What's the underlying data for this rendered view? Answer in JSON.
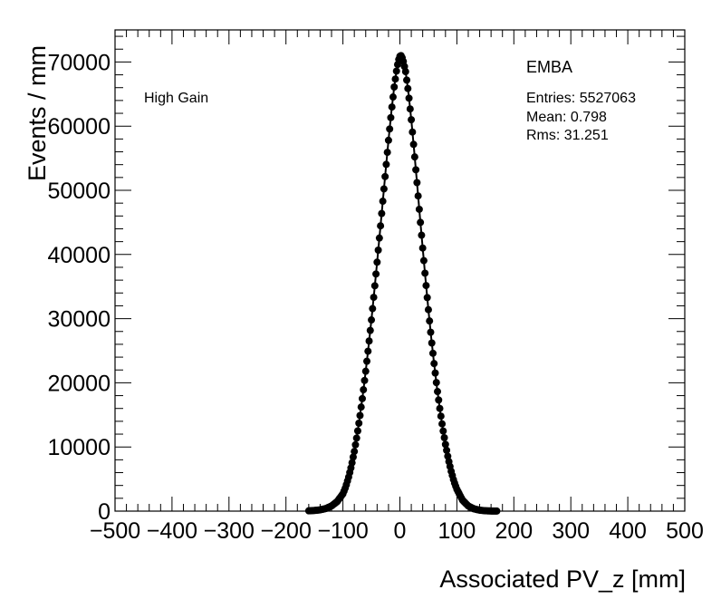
{
  "chart_data": {
    "type": "scatter",
    "title": "",
    "xlabel": "Associated PV_z [mm]",
    "ylabel": "Events / mm",
    "xlim": [
      -500,
      500
    ],
    "ylim": [
      0,
      75000
    ],
    "x_ticks": [
      "−500",
      "−400",
      "−300",
      "−200",
      "−100",
      "0",
      "100",
      "200",
      "300",
      "400",
      "500"
    ],
    "y_ticks": [
      "0",
      "10000",
      "20000",
      "30000",
      "40000",
      "50000",
      "60000",
      "70000"
    ],
    "annotation": "High Gain",
    "stats_box": {
      "title": "EMBA",
      "entries": "Entries: 5527063",
      "mean": "Mean: 0.798",
      "rms": "Rms: 31.251"
    },
    "series": [
      {
        "marker": "filled-circle",
        "color": "#000000",
        "x": [
          -160,
          -150,
          -140,
          -130,
          -120,
          -110,
          -100,
          -95,
          -90,
          -85,
          -80,
          -75,
          -70,
          -65,
          -60,
          -55,
          -50,
          -45,
          -40,
          -35,
          -30,
          -25,
          -20,
          -15,
          -10,
          -5,
          -2,
          0,
          2,
          5,
          10,
          15,
          20,
          25,
          30,
          35,
          40,
          45,
          50,
          55,
          60,
          65,
          70,
          75,
          80,
          85,
          90,
          95,
          100,
          110,
          120,
          130,
          140,
          150,
          160,
          170
        ],
        "y": [
          50,
          100,
          200,
          400,
          800,
          1500,
          2700,
          3800,
          5300,
          7100,
          9300,
          11900,
          14900,
          18200,
          21800,
          25700,
          29800,
          34200,
          38800,
          43500,
          48300,
          53100,
          57800,
          62200,
          66100,
          69200,
          70400,
          70900,
          71000,
          70500,
          68500,
          65200,
          61000,
          56200,
          51200,
          46000,
          41000,
          36100,
          31400,
          27000,
          23000,
          19300,
          16000,
          13000,
          10400,
          8100,
          6200,
          4600,
          3400,
          1700,
          800,
          350,
          150,
          60,
          20,
          10
        ]
      }
    ]
  }
}
